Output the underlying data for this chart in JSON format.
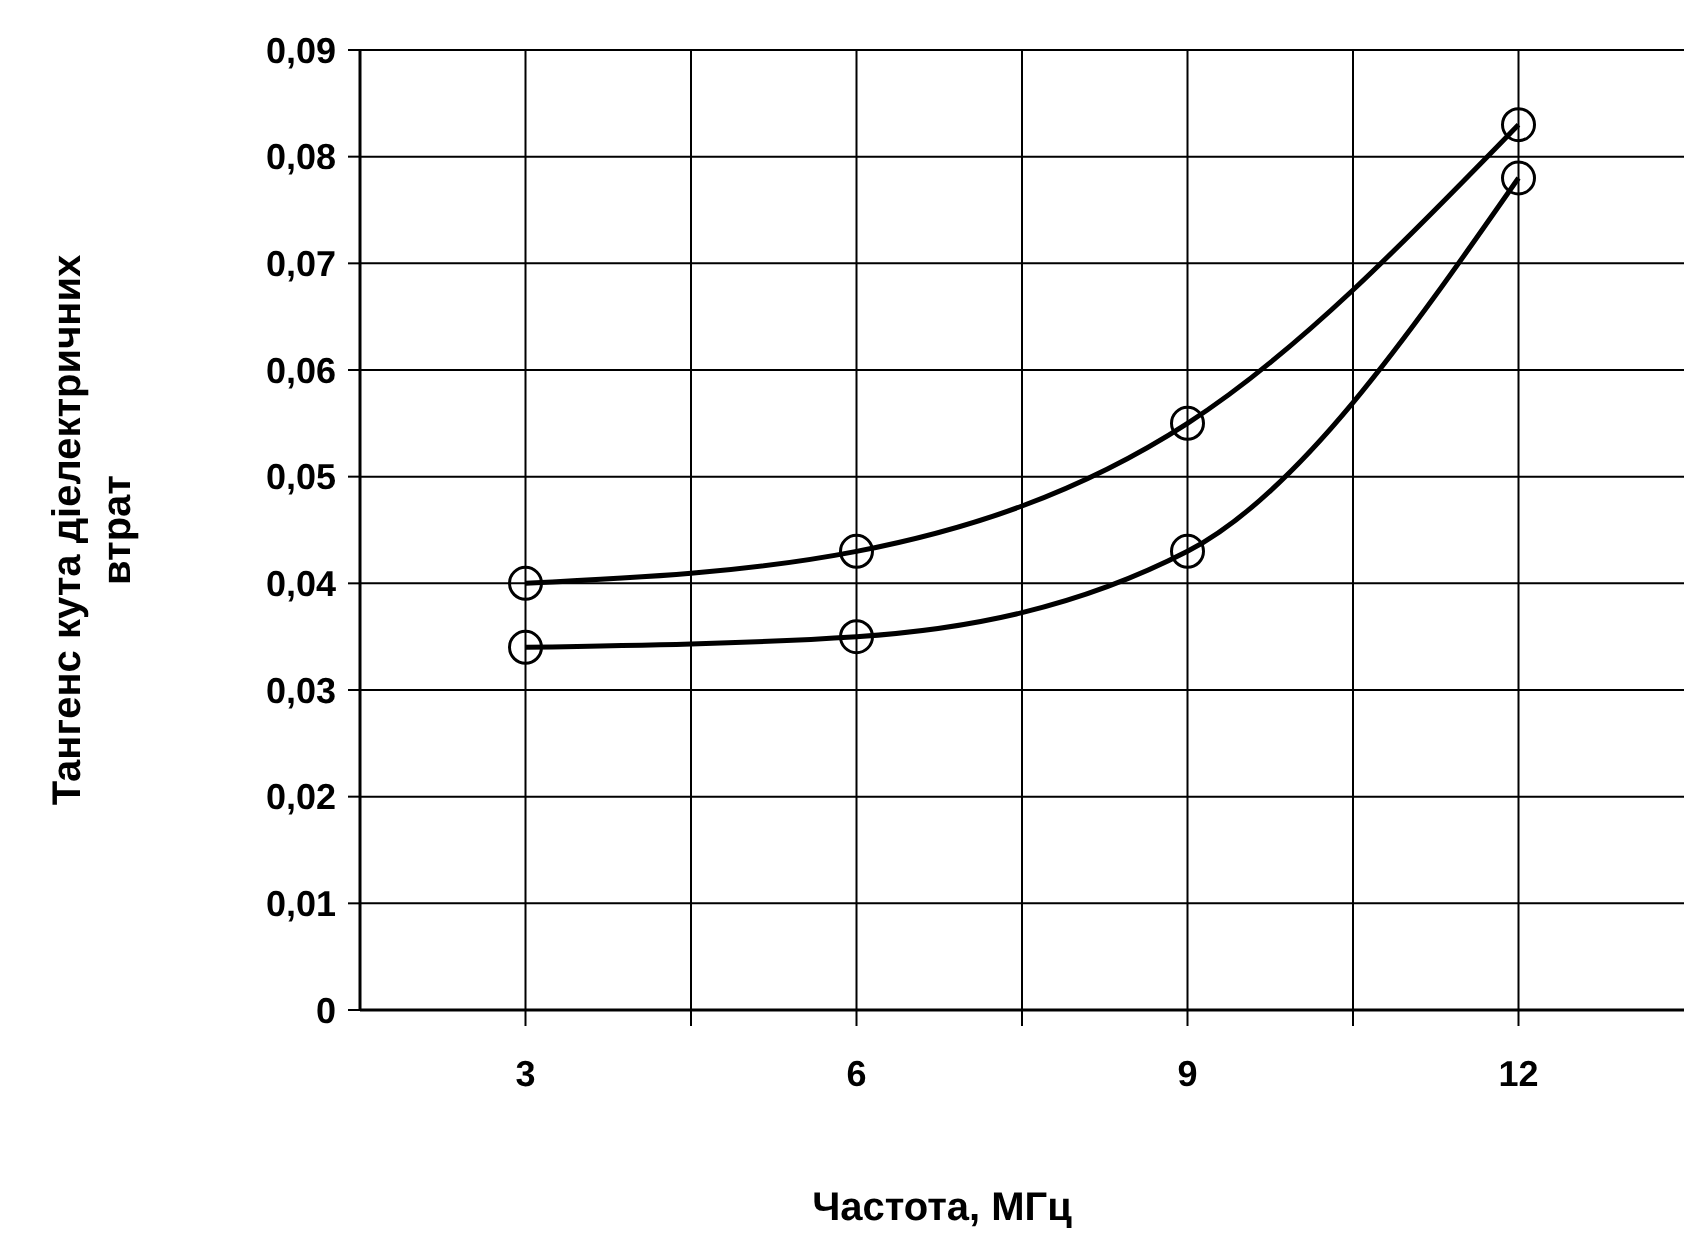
{
  "chart_data": {
    "type": "line",
    "xlabel": "Частота, МГц",
    "ylabel": "Тангенс кута діелектричних\nвтрат",
    "x": [
      3,
      6,
      9,
      12
    ],
    "series": [
      {
        "color": "#000000",
        "values": [
          0.04,
          0.043,
          0.055,
          0.083
        ]
      },
      {
        "color": "#000000",
        "values": [
          0.034,
          0.035,
          0.043,
          0.078
        ]
      }
    ],
    "xlim": [
      1.5,
      13.5
    ],
    "xticks": [
      3,
      {
        "value": 4.5,
        "label": null
      },
      6,
      {
        "value": 7.5,
        "label": null
      },
      9,
      {
        "value": 10.5,
        "label": null
      },
      12
    ],
    "ylim": [
      0,
      0.09
    ],
    "yticks": [
      {
        "value": 0,
        "label": "0"
      },
      {
        "value": 0.01,
        "label": "0,01"
      },
      {
        "value": 0.02,
        "label": "0,02"
      },
      {
        "value": 0.03,
        "label": "0,03"
      },
      {
        "value": 0.04,
        "label": "0,04"
      },
      {
        "value": 0.05,
        "label": "0,05"
      },
      {
        "value": 0.06,
        "label": "0,06"
      },
      {
        "value": 0.07,
        "label": "0,07"
      },
      {
        "value": 0.08,
        "label": "0,08"
      },
      {
        "value": 0.09,
        "label": "0,09"
      }
    ],
    "grid": true,
    "marker": "circle",
    "line_style": "solid"
  }
}
